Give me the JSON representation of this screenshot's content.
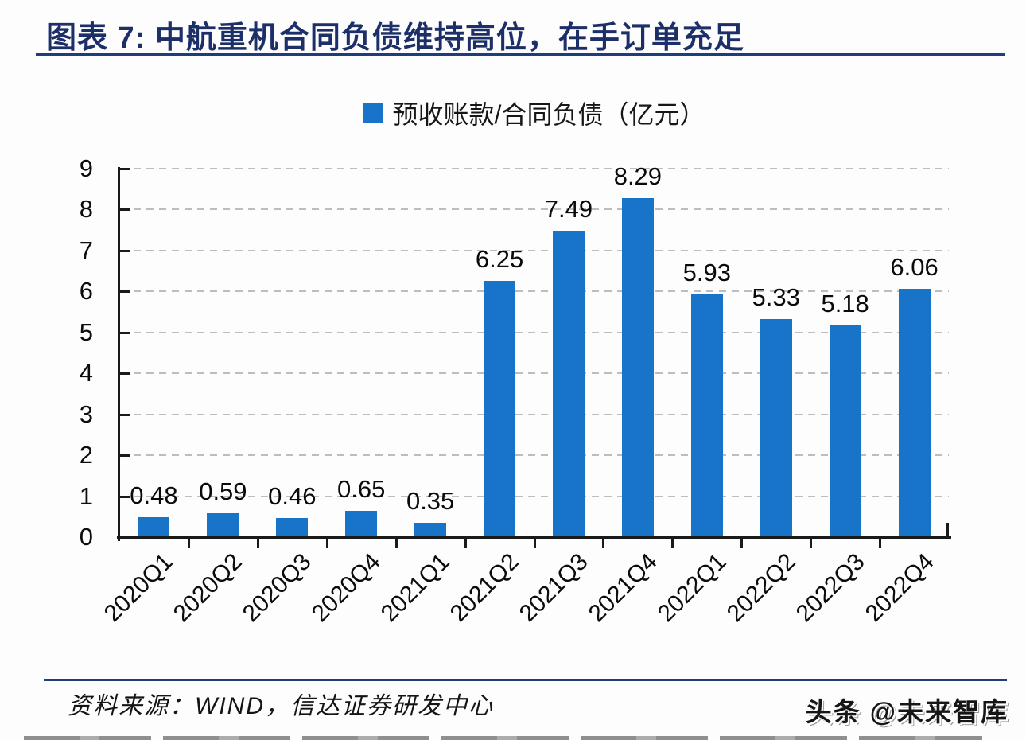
{
  "header": {
    "title": "图表 7:  中航重机合同负债维持高位，在手订单充足",
    "accent_color": "#1f3d7d"
  },
  "legend": {
    "label": "预收账款/合同负债（亿元）",
    "marker_color": "#1874c8"
  },
  "chart_data": {
    "type": "bar",
    "title": "图表 7: 中航重机合同负债维持高位，在手订单充足",
    "legend_entries": [
      "预收账款/合同负债（亿元）"
    ],
    "legend_position": "top-center",
    "categories": [
      "2020Q1",
      "2020Q2",
      "2020Q3",
      "2020Q4",
      "2021Q1",
      "2021Q2",
      "2021Q3",
      "2021Q4",
      "2022Q1",
      "2022Q2",
      "2022Q3",
      "2022Q4"
    ],
    "values": [
      0.48,
      0.59,
      0.46,
      0.65,
      0.35,
      6.25,
      7.49,
      8.29,
      5.93,
      5.33,
      5.18,
      6.06
    ],
    "value_labels_shown": true,
    "bar_color": "#1874c8",
    "xlabel": "",
    "ylabel": "",
    "ylim": [
      0,
      9
    ],
    "yticks": [
      0,
      1,
      2,
      3,
      4,
      5,
      6,
      7,
      8,
      9
    ],
    "grid": "horizontal-dashed",
    "xtick_rotation_deg": -45
  },
  "footer": {
    "source": "资料来源：WIND，信达证券研发中心",
    "watermark": "头条 @未来智库"
  }
}
